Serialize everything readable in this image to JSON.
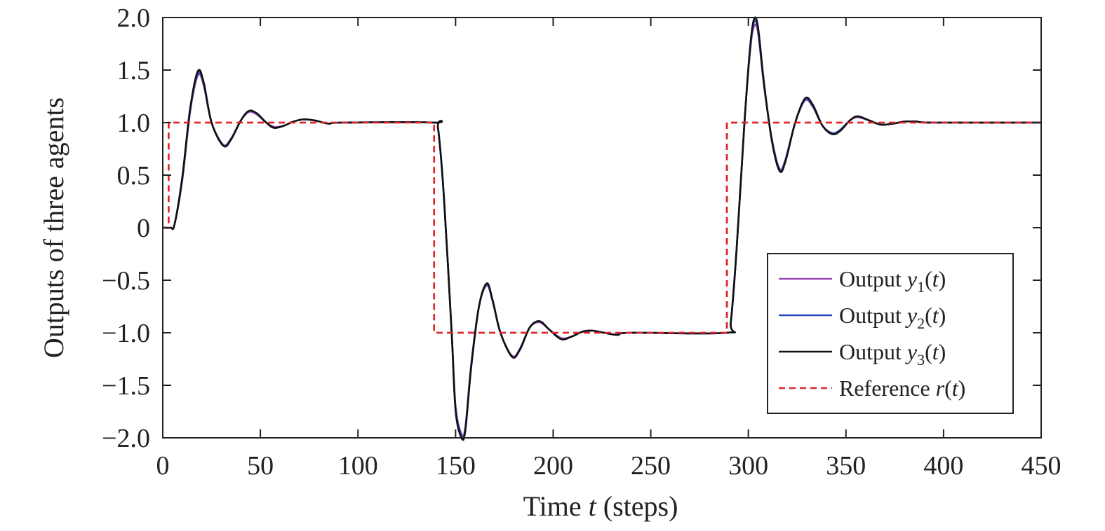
{
  "chart_data": {
    "type": "line",
    "xlabel": {
      "pre": "Time ",
      "var": "t",
      "post": " (steps)"
    },
    "ylabel": "Outputs of three agents",
    "xlim": [
      0,
      450
    ],
    "ylim": [
      -2.0,
      2.0
    ],
    "xticks": [
      0,
      50,
      100,
      150,
      200,
      250,
      300,
      350,
      400,
      450
    ],
    "xtick_labels": [
      "0",
      "50",
      "100",
      "150",
      "200",
      "250",
      "300",
      "350",
      "400",
      "450"
    ],
    "yticks": [
      2.0,
      1.5,
      1.0,
      0.5,
      0,
      -0.5,
      -1.0,
      -1.5,
      -2.0
    ],
    "ytick_labels": [
      "2.0",
      "1.5",
      "1.0",
      "0.5",
      "0",
      "−0.5",
      "−1.0",
      "−1.5",
      "−2.0"
    ],
    "grid": false,
    "legend_position": "bottom-right",
    "reference": {
      "name": "Reference r(t)",
      "color": "#e0262b",
      "dash": true,
      "points": [
        [
          0,
          0
        ],
        [
          3,
          0
        ],
        [
          3,
          1
        ],
        [
          139,
          1
        ],
        [
          139,
          -1
        ],
        [
          289,
          -1
        ],
        [
          289,
          1
        ],
        [
          450,
          1
        ]
      ]
    },
    "series": [
      {
        "name": "Output y1(t)",
        "color": "#9b49b5",
        "points": [
          [
            0,
            0
          ],
          [
            4,
            0
          ],
          [
            6,
            0.03
          ],
          [
            10,
            0.45
          ],
          [
            14,
            1.1
          ],
          [
            18,
            1.45
          ],
          [
            21,
            1.35
          ],
          [
            25,
            1.0
          ],
          [
            31,
            0.79
          ],
          [
            35,
            0.85
          ],
          [
            40,
            1.02
          ],
          [
            44,
            1.1
          ],
          [
            48,
            1.08
          ],
          [
            53,
            1.0
          ],
          [
            57,
            0.96
          ],
          [
            62,
            0.97
          ],
          [
            67,
            1.01
          ],
          [
            72,
            1.03
          ],
          [
            78,
            1.02
          ],
          [
            85,
            0.99
          ],
          [
            92,
            1.0
          ],
          [
            139,
            1.0
          ],
          [
            141,
            0.95
          ],
          [
            144,
            0.3
          ],
          [
            148,
            -1.0
          ],
          [
            150,
            -1.7
          ],
          [
            153,
            -1.96
          ],
          [
            155,
            -1.9
          ],
          [
            158,
            -1.3
          ],
          [
            162,
            -0.75
          ],
          [
            166,
            -0.55
          ],
          [
            169,
            -0.7
          ],
          [
            173,
            -1.0
          ],
          [
            179,
            -1.22
          ],
          [
            183,
            -1.15
          ],
          [
            188,
            -0.95
          ],
          [
            193,
            -0.9
          ],
          [
            198,
            -0.97
          ],
          [
            204,
            -1.05
          ],
          [
            209,
            -1.04
          ],
          [
            215,
            -0.99
          ],
          [
            220,
            -0.98
          ],
          [
            226,
            -1.0
          ],
          [
            233,
            -1.02
          ],
          [
            240,
            -1.0
          ],
          [
            289,
            -1.0
          ],
          [
            291,
            -0.9
          ],
          [
            294,
            -0.2
          ],
          [
            298,
            1.0
          ],
          [
            301,
            1.7
          ],
          [
            303,
            1.92
          ],
          [
            305,
            1.85
          ],
          [
            308,
            1.35
          ],
          [
            312,
            0.85
          ],
          [
            316,
            0.56
          ],
          [
            319,
            0.65
          ],
          [
            324,
            1.0
          ],
          [
            329,
            1.21
          ],
          [
            333,
            1.15
          ],
          [
            338,
            0.97
          ],
          [
            343,
            0.9
          ],
          [
            347,
            0.93
          ],
          [
            352,
            1.02
          ],
          [
            356,
            1.05
          ],
          [
            362,
            1.02
          ],
          [
            368,
            0.98
          ],
          [
            374,
            0.99
          ],
          [
            380,
            1.01
          ],
          [
            386,
            1.01
          ],
          [
            395,
            1.0
          ],
          [
            450,
            1.0
          ]
        ]
      },
      {
        "name": "Output y2(t)",
        "color": "#2b47b8",
        "points": [
          [
            0,
            0
          ],
          [
            4,
            0
          ],
          [
            6,
            0.03
          ],
          [
            10,
            0.47
          ],
          [
            14,
            1.12
          ],
          [
            18,
            1.47
          ],
          [
            21,
            1.37
          ],
          [
            25,
            1.0
          ],
          [
            31,
            0.78
          ],
          [
            35,
            0.84
          ],
          [
            40,
            1.02
          ],
          [
            44,
            1.11
          ],
          [
            48,
            1.09
          ],
          [
            53,
            1.0
          ],
          [
            57,
            0.95
          ],
          [
            62,
            0.97
          ],
          [
            67,
            1.01
          ],
          [
            72,
            1.03
          ],
          [
            78,
            1.02
          ],
          [
            85,
            0.99
          ],
          [
            92,
            1.0
          ],
          [
            139,
            1.0
          ],
          [
            141,
            0.95
          ],
          [
            144,
            0.3
          ],
          [
            148,
            -1.0
          ],
          [
            150,
            -1.72
          ],
          [
            153,
            -1.98
          ],
          [
            155,
            -1.92
          ],
          [
            158,
            -1.32
          ],
          [
            162,
            -0.75
          ],
          [
            166,
            -0.54
          ],
          [
            169,
            -0.7
          ],
          [
            173,
            -1.0
          ],
          [
            179,
            -1.23
          ],
          [
            183,
            -1.16
          ],
          [
            188,
            -0.95
          ],
          [
            193,
            -0.89
          ],
          [
            198,
            -0.97
          ],
          [
            204,
            -1.06
          ],
          [
            209,
            -1.04
          ],
          [
            215,
            -0.99
          ],
          [
            220,
            -0.98
          ],
          [
            226,
            -1.0
          ],
          [
            233,
            -1.02
          ],
          [
            240,
            -1.0
          ],
          [
            289,
            -1.0
          ],
          [
            291,
            -0.9
          ],
          [
            294,
            -0.2
          ],
          [
            298,
            1.0
          ],
          [
            301,
            1.72
          ],
          [
            303,
            1.96
          ],
          [
            305,
            1.88
          ],
          [
            308,
            1.37
          ],
          [
            312,
            0.84
          ],
          [
            316,
            0.55
          ],
          [
            319,
            0.64
          ],
          [
            324,
            1.0
          ],
          [
            329,
            1.22
          ],
          [
            333,
            1.16
          ],
          [
            338,
            0.97
          ],
          [
            343,
            0.9
          ],
          [
            347,
            0.93
          ],
          [
            352,
            1.02
          ],
          [
            356,
            1.06
          ],
          [
            362,
            1.02
          ],
          [
            368,
            0.98
          ],
          [
            374,
            0.99
          ],
          [
            380,
            1.01
          ],
          [
            386,
            1.01
          ],
          [
            395,
            1.0
          ],
          [
            450,
            1.0
          ]
        ]
      },
      {
        "name": "Output y3(t)",
        "color": "#111111",
        "points": [
          [
            0,
            0
          ],
          [
            4,
            0
          ],
          [
            6,
            0.03
          ],
          [
            10,
            0.48
          ],
          [
            14,
            1.13
          ],
          [
            18,
            1.49
          ],
          [
            21,
            1.38
          ],
          [
            25,
            1.0
          ],
          [
            31,
            0.78
          ],
          [
            35,
            0.84
          ],
          [
            40,
            1.02
          ],
          [
            44,
            1.11
          ],
          [
            48,
            1.09
          ],
          [
            53,
            1.0
          ],
          [
            57,
            0.95
          ],
          [
            62,
            0.97
          ],
          [
            67,
            1.01
          ],
          [
            72,
            1.03
          ],
          [
            78,
            1.02
          ],
          [
            85,
            0.99
          ],
          [
            92,
            1.0
          ],
          [
            139,
            1.0
          ],
          [
            141,
            0.95
          ],
          [
            144,
            0.3
          ],
          [
            148,
            -1.0
          ],
          [
            150,
            -1.74
          ],
          [
            153,
            -2.0
          ],
          [
            155,
            -1.93
          ],
          [
            158,
            -1.33
          ],
          [
            162,
            -0.75
          ],
          [
            166,
            -0.53
          ],
          [
            169,
            -0.69
          ],
          [
            173,
            -1.0
          ],
          [
            179,
            -1.23
          ],
          [
            183,
            -1.16
          ],
          [
            188,
            -0.95
          ],
          [
            193,
            -0.89
          ],
          [
            198,
            -0.97
          ],
          [
            204,
            -1.06
          ],
          [
            209,
            -1.04
          ],
          [
            215,
            -0.99
          ],
          [
            220,
            -0.98
          ],
          [
            226,
            -1.0
          ],
          [
            233,
            -1.02
          ],
          [
            240,
            -1.0
          ],
          [
            289,
            -1.0
          ],
          [
            291,
            -0.9
          ],
          [
            294,
            -0.2
          ],
          [
            298,
            1.0
          ],
          [
            301,
            1.74
          ],
          [
            303,
            1.99
          ],
          [
            305,
            1.9
          ],
          [
            308,
            1.38
          ],
          [
            312,
            0.83
          ],
          [
            316,
            0.54
          ],
          [
            319,
            0.63
          ],
          [
            324,
            1.0
          ],
          [
            329,
            1.23
          ],
          [
            333,
            1.17
          ],
          [
            338,
            0.97
          ],
          [
            343,
            0.89
          ],
          [
            347,
            0.92
          ],
          [
            352,
            1.02
          ],
          [
            356,
            1.06
          ],
          [
            362,
            1.02
          ],
          [
            368,
            0.98
          ],
          [
            374,
            0.99
          ],
          [
            380,
            1.01
          ],
          [
            386,
            1.01
          ],
          [
            395,
            1.0
          ],
          [
            450,
            1.0
          ]
        ]
      }
    ],
    "legend": [
      {
        "pre": "Output ",
        "var": "y",
        "sub": "1",
        "post_open": "(",
        "arg": "t",
        "post_close": ")",
        "color": "#9b49b5",
        "dash": false
      },
      {
        "pre": "Output ",
        "var": "y",
        "sub": "2",
        "post_open": "(",
        "arg": "t",
        "post_close": ")",
        "color": "#2b47b8",
        "dash": false
      },
      {
        "pre": "Output ",
        "var": "y",
        "sub": "3",
        "post_open": "(",
        "arg": "t",
        "post_close": ")",
        "color": "#111111",
        "dash": false
      },
      {
        "pre": "Reference ",
        "var": "r",
        "sub": "",
        "post_open": "(",
        "arg": "t",
        "post_close": ")",
        "color": "#e0262b",
        "dash": true
      }
    ]
  }
}
